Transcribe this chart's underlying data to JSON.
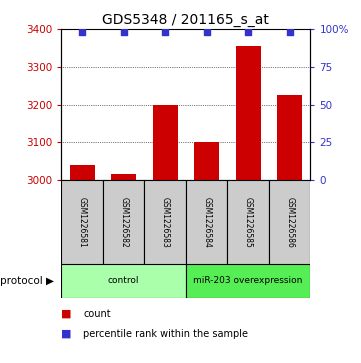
{
  "title": "GDS5348 / 201165_s_at",
  "samples": [
    "GSM1226581",
    "GSM1226582",
    "GSM1226583",
    "GSM1226584",
    "GSM1226585",
    "GSM1226586"
  ],
  "counts": [
    3040,
    3015,
    3200,
    3100,
    3355,
    3225
  ],
  "percentile_ranks": [
    98,
    98,
    98,
    98,
    98,
    98
  ],
  "bar_color": "#cc0000",
  "dot_color": "#3333cc",
  "ylim_left": [
    3000,
    3400
  ],
  "ylim_right": [
    0,
    100
  ],
  "yticks_left": [
    3000,
    3100,
    3200,
    3300,
    3400
  ],
  "yticks_right": [
    0,
    25,
    50,
    75,
    100
  ],
  "ytick_labels_right": [
    "0",
    "25",
    "50",
    "75",
    "100%"
  ],
  "grid_pct": [
    25,
    50,
    75
  ],
  "protocol_groups": [
    {
      "label": "control",
      "indices": [
        0,
        1,
        2
      ],
      "color": "#aaffaa"
    },
    {
      "label": "miR-203 overexpression",
      "indices": [
        3,
        4,
        5
      ],
      "color": "#55ee55"
    }
  ],
  "protocol_label": "protocol",
  "legend_count_label": "count",
  "legend_pct_label": "percentile rank within the sample",
  "title_fontsize": 10,
  "axis_label_color_left": "#cc0000",
  "axis_label_color_right": "#3333cc",
  "background_color": "#ffffff",
  "sample_box_color": "#cccccc",
  "bar_width": 0.6
}
